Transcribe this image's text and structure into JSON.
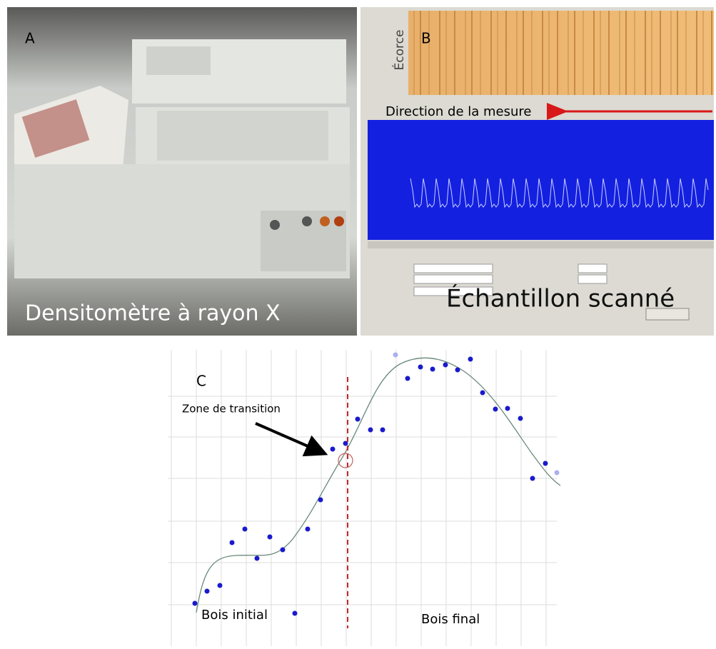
{
  "panels": {
    "a": {
      "label": "A",
      "caption": "Densitomètre à rayon X"
    },
    "b": {
      "label": "B",
      "bark": "Écorce",
      "direction": "Direction de la mesure",
      "caption": "Échantillon scanné"
    },
    "c": {
      "label": "C",
      "transition": "Zone de transition",
      "earlywood": "Bois initial",
      "latewood": "Bois final"
    }
  }
}
